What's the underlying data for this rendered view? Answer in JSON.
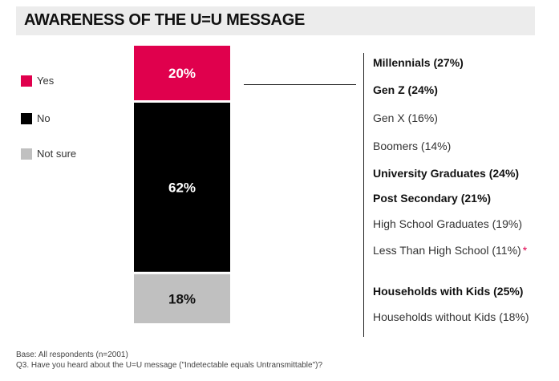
{
  "title": "AWARENESS OF THE U=U MESSAGE",
  "chart_data": {
    "type": "bar",
    "stacked": true,
    "categories": [
      ""
    ],
    "series": [
      {
        "name": "Yes",
        "values": [
          20
        ],
        "label": "20%",
        "color": "#e0004d",
        "text_color": "#ffffff"
      },
      {
        "name": "No",
        "values": [
          62
        ],
        "label": "62%",
        "color": "#000000",
        "text_color": "#ffffff"
      },
      {
        "name": "Not sure",
        "values": [
          18
        ],
        "label": "18%",
        "color": "#c0c0c0",
        "text_color": "#111111"
      }
    ],
    "ylim": [
      0,
      100
    ],
    "legend_position": "left"
  },
  "legend": [
    {
      "label": "Yes",
      "color": "#e0004d"
    },
    {
      "label": "No",
      "color": "#000000"
    },
    {
      "label": "Not sure",
      "color": "#c0c0c0"
    }
  ],
  "demographics": [
    {
      "label": "Millennials (27%)",
      "bold": true,
      "marker": ""
    },
    {
      "label": "Gen Z (24%)",
      "bold": true,
      "marker": ""
    },
    {
      "label": "Gen X (16%)",
      "bold": false,
      "marker": ""
    },
    {
      "label": "Boomers (14%)",
      "bold": false,
      "marker": ""
    },
    {
      "label": "University Graduates (24%)",
      "bold": true,
      "marker": ""
    },
    {
      "label": "Post Secondary (21%)",
      "bold": true,
      "marker": ""
    },
    {
      "label": "High School Graduates (19%)",
      "bold": false,
      "marker": ""
    },
    {
      "label": "Less Than High School (11%)",
      "bold": false,
      "marker": "*"
    },
    {
      "label": "Households with Kids (25%)",
      "bold": true,
      "marker": ""
    },
    {
      "label": "Households without Kids (18%)",
      "bold": false,
      "marker": ""
    }
  ],
  "footnote": {
    "base": "Base: All respondents (n=2001)",
    "question": "Q3. Have you heard about the U=U message (\"Indetectable equals Untransmittable\")?"
  }
}
